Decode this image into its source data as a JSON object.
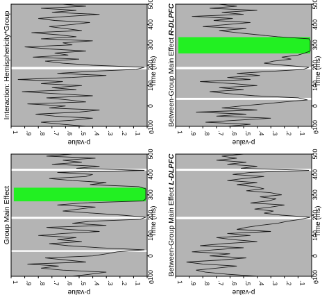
{
  "chart_data": [
    {
      "type": "line",
      "title": "Group Main Effect",
      "xlabel": "Time (ms)",
      "ylabel": "p-value",
      "time_ticks": [
        -100,
        0,
        100,
        200,
        300,
        400,
        500
      ],
      "time_range": [
        -100,
        500
      ],
      "p_ticks": [
        "1",
        ".9",
        ".8",
        ".7",
        ".6",
        ".5",
        ".4",
        ".3",
        ".2",
        ".1",
        "0"
      ],
      "p_range": [
        0,
        1
      ],
      "significant_windows": [
        [
          268,
          335
        ]
      ],
      "baseline_dips": [
        [
          20,
          28
        ],
        [
          182,
          192
        ],
        [
          418,
          428
        ]
      ],
      "x": [
        -100,
        -90,
        -80,
        -70,
        -60,
        -50,
        -40,
        -30,
        -20,
        -10,
        0,
        10,
        20,
        30,
        40,
        50,
        60,
        70,
        80,
        90,
        100,
        110,
        120,
        130,
        140,
        150,
        160,
        170,
        180,
        190,
        200,
        210,
        220,
        230,
        240,
        250,
        260,
        270,
        280,
        290,
        300,
        310,
        320,
        330,
        340,
        350,
        360,
        370,
        380,
        390,
        400,
        410,
        420,
        430,
        440,
        450,
        460,
        470,
        480,
        490,
        500
      ],
      "values": [
        0.55,
        0.42,
        0.3,
        0.62,
        0.78,
        0.65,
        0.88,
        0.45,
        0.6,
        0.75,
        0.4,
        0.3,
        0.22,
        0.02,
        0.35,
        0.58,
        0.72,
        0.48,
        0.66,
        0.52,
        0.8,
        0.62,
        0.35,
        0.58,
        0.74,
        0.3,
        0.55,
        0.42,
        0.05,
        0.01,
        0.18,
        0.4,
        0.62,
        0.5,
        0.38,
        0.66,
        0.48,
        0.03,
        0.01,
        0.01,
        0.01,
        0.01,
        0.01,
        0.01,
        0.06,
        0.42,
        0.3,
        0.55,
        0.72,
        0.45,
        0.4,
        0.66,
        0.02,
        0.52,
        0.35,
        0.7,
        0.48,
        0.62,
        0.38,
        0.74,
        0.55
      ]
    },
    {
      "type": "line",
      "title": "Interaction: Hemisphericity*Group",
      "xlabel": "Time (ms)",
      "ylabel": "p-value",
      "time_ticks": [
        -100,
        0,
        100,
        200,
        300,
        400,
        500
      ],
      "time_range": [
        -100,
        500
      ],
      "p_ticks": [
        "1",
        ".9",
        ".8",
        ".7",
        ".6",
        ".5",
        ".4",
        ".3",
        ".2",
        ".1",
        "0"
      ],
      "p_range": [
        0,
        1
      ],
      "significant_windows": [],
      "baseline_dips": [
        [
          180,
          192
        ]
      ],
      "x": [
        -100,
        -90,
        -80,
        -70,
        -60,
        -50,
        -40,
        -30,
        -20,
        -10,
        0,
        10,
        20,
        30,
        40,
        50,
        60,
        70,
        80,
        90,
        100,
        110,
        120,
        130,
        140,
        150,
        160,
        170,
        180,
        190,
        200,
        210,
        220,
        230,
        240,
        250,
        260,
        270,
        280,
        290,
        300,
        310,
        320,
        330,
        340,
        350,
        360,
        370,
        380,
        390,
        400,
        410,
        420,
        430,
        440,
        450,
        460,
        470,
        480,
        490,
        500
      ],
      "values": [
        0.45,
        0.62,
        0.78,
        0.55,
        0.4,
        0.68,
        0.82,
        0.5,
        0.35,
        0.72,
        0.6,
        0.88,
        0.45,
        0.58,
        0.74,
        0.4,
        0.66,
        0.92,
        0.52,
        0.7,
        0.48,
        0.78,
        0.62,
        0.95,
        0.55,
        0.3,
        0.66,
        0.42,
        0.08,
        0.02,
        0.4,
        0.62,
        0.75,
        0.5,
        0.84,
        0.58,
        0.68,
        0.45,
        0.72,
        0.9,
        0.55,
        0.62,
        0.4,
        0.78,
        0.52,
        0.66,
        0.85,
        0.48,
        0.6,
        0.72,
        0.55,
        0.42,
        0.68,
        0.8,
        0.58,
        0.35,
        0.7,
        0.52,
        0.78,
        0.45,
        0.62
      ]
    },
    {
      "type": "line",
      "title": "Between-Group Main Effect L-DLPFC",
      "xlabel": "Time (ms)",
      "ylabel": "p-value",
      "time_ticks": [
        -100,
        0,
        100,
        200,
        300,
        400,
        500
      ],
      "time_range": [
        -100,
        500
      ],
      "p_ticks": [
        "1",
        ".9",
        ".8",
        ".7",
        ".6",
        ".5",
        ".4",
        ".3",
        ".2",
        ".1",
        "0"
      ],
      "p_range": [
        0,
        1
      ],
      "significant_windows": [],
      "baseline_dips": [
        [
          180,
          192
        ],
        [
          418,
          428
        ]
      ],
      "x": [
        -100,
        -90,
        -80,
        -70,
        -60,
        -50,
        -40,
        -30,
        -20,
        -10,
        0,
        10,
        20,
        30,
        40,
        50,
        60,
        70,
        80,
        90,
        100,
        110,
        120,
        130,
        140,
        150,
        160,
        170,
        180,
        190,
        200,
        210,
        220,
        230,
        240,
        250,
        260,
        270,
        280,
        290,
        300,
        310,
        320,
        330,
        340,
        350,
        360,
        370,
        380,
        390,
        400,
        410,
        420,
        430,
        440,
        450,
        460,
        470,
        480,
        490,
        500
      ],
      "values": [
        0.4,
        0.62,
        0.78,
        0.85,
        0.7,
        0.55,
        0.8,
        0.92,
        0.66,
        0.48,
        0.75,
        0.6,
        0.88,
        0.72,
        0.5,
        0.82,
        0.65,
        0.4,
        0.58,
        0.7,
        0.45,
        0.62,
        0.3,
        0.55,
        0.48,
        0.38,
        0.25,
        0.18,
        0.08,
        0.01,
        0.22,
        0.35,
        0.28,
        0.42,
        0.3,
        0.2,
        0.45,
        0.32,
        0.26,
        0.38,
        0.22,
        0.3,
        0.48,
        0.35,
        0.42,
        0.55,
        0.4,
        0.62,
        0.5,
        0.35,
        0.58,
        0.45,
        0.02,
        0.52,
        0.4,
        0.62,
        0.48,
        0.7,
        0.55,
        0.66,
        0.5
      ]
    },
    {
      "type": "line",
      "title": "Between-Group Main Effect R-DLPFC",
      "xlabel": "Time (ms)",
      "ylabel": "p-value",
      "time_ticks": [
        -100,
        0,
        100,
        200,
        300,
        400,
        500
      ],
      "time_range": [
        -100,
        500
      ],
      "p_ticks": [
        "1",
        ".9",
        ".8",
        ".7",
        ".6",
        ".5",
        ".4",
        ".3",
        ".2",
        ".1",
        "0"
      ],
      "p_range": [
        0,
        1
      ],
      "significant_windows": [
        [
          258,
          338
        ]
      ],
      "baseline_dips": [
        [
          30,
          40
        ],
        [
          180,
          192
        ]
      ],
      "x": [
        -100,
        -90,
        -80,
        -70,
        -60,
        -50,
        -40,
        -30,
        -20,
        -10,
        0,
        10,
        20,
        30,
        40,
        50,
        60,
        70,
        80,
        90,
        100,
        110,
        120,
        130,
        140,
        150,
        160,
        170,
        180,
        190,
        200,
        210,
        220,
        230,
        240,
        250,
        260,
        270,
        280,
        290,
        300,
        310,
        320,
        330,
        340,
        350,
        360,
        370,
        380,
        390,
        400,
        410,
        420,
        430,
        440,
        450,
        460,
        470,
        480,
        490,
        500
      ],
      "values": [
        0.62,
        0.45,
        0.78,
        0.55,
        0.3,
        0.7,
        0.48,
        0.85,
        0.4,
        0.66,
        0.52,
        0.35,
        0.2,
        0.03,
        0.1,
        0.42,
        0.6,
        0.75,
        0.5,
        0.68,
        0.4,
        0.58,
        0.82,
        0.45,
        0.62,
        0.38,
        0.55,
        0.3,
        0.06,
        0.02,
        0.2,
        0.35,
        0.28,
        0.15,
        0.22,
        0.1,
        0.05,
        0.01,
        0.01,
        0.01,
        0.01,
        0.01,
        0.01,
        0.02,
        0.25,
        0.4,
        0.55,
        0.68,
        0.48,
        0.8,
        0.62,
        0.45,
        0.72,
        0.58,
        0.88,
        0.5,
        0.66,
        0.4,
        0.75,
        0.55,
        0.68
      ]
    }
  ]
}
